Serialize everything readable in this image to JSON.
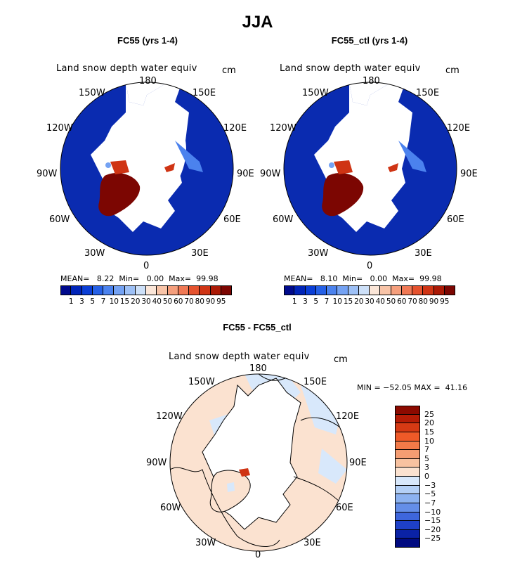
{
  "title": "JJA",
  "panels": [
    {
      "title": "FC55 (yrs 1-4)",
      "variable": "Land snow depth water equiv",
      "units": "cm",
      "stats": {
        "mean_label": "MEAN=",
        "mean": "8.22",
        "min_label": "Min=",
        "min": "0.00",
        "max_label": "Max=",
        "max": "99.98"
      }
    },
    {
      "title": "FC55_ctl (yrs 1-4)",
      "variable": "Land snow depth water equiv",
      "units": "cm",
      "stats": {
        "mean_label": "MEAN=",
        "mean": "8.10",
        "min_label": "Min=",
        "min": "0.00",
        "max_label": "Max=",
        "max": "99.98"
      }
    },
    {
      "title": "FC55 - FC55_ctl",
      "variable": "Land snow depth water equiv",
      "units": "cm",
      "stats_text": "MIN = −52.05 MAX =  41.16"
    }
  ],
  "longitude_labels": [
    "180",
    "150E",
    "120E",
    "90E",
    "60E",
    "30E",
    "0",
    "30W",
    "60W",
    "90W",
    "120W",
    "150W"
  ],
  "colorbar_top": {
    "ticks": [
      "1",
      "3",
      "5",
      "7",
      "10",
      "15",
      "20",
      "30",
      "40",
      "50",
      "60",
      "70",
      "80",
      "90",
      "95"
    ],
    "colors": [
      "#000a8c",
      "#0024b8",
      "#0a3ed6",
      "#2560e6",
      "#4b82ee",
      "#74a2f3",
      "#9dc0f6",
      "#cde0f8",
      "#fbe6d8",
      "#f8c4a8",
      "#f59f7d",
      "#f07955",
      "#e5522e",
      "#cf3414",
      "#ab1a06",
      "#7c0602"
    ]
  },
  "colorbar_diff": {
    "ticks": [
      "25",
      "20",
      "15",
      "10",
      "7",
      "5",
      "3",
      "0",
      "−3",
      "−5",
      "−7",
      "−10",
      "−15",
      "−20",
      "−25"
    ],
    "colors": [
      "#8c0a00",
      "#b51c06",
      "#d63a14",
      "#ef5a28",
      "#f27a48",
      "#f59d72",
      "#f8c2a0",
      "#fbe2d0",
      "#d8e8fb",
      "#b4d0f6",
      "#8cb2f0",
      "#648ee8",
      "#3e66dc",
      "#1e40c8",
      "#0a22a6",
      "#000a80"
    ]
  },
  "chart_data": [
    {
      "type": "heatmap",
      "title": "FC55 (yrs 1-4)",
      "subtitle": "Land snow depth water equiv",
      "units": "cm",
      "projection": "north polar stereographic",
      "mean": 8.22,
      "min": 0.0,
      "max": 99.98,
      "levels": [
        1,
        3,
        5,
        7,
        10,
        15,
        20,
        30,
        40,
        50,
        60,
        70,
        80,
        90,
        95
      ]
    },
    {
      "type": "heatmap",
      "title": "FC55_ctl (yrs 1-4)",
      "subtitle": "Land snow depth water equiv",
      "units": "cm",
      "projection": "north polar stereographic",
      "mean": 8.1,
      "min": 0.0,
      "max": 99.98,
      "levels": [
        1,
        3,
        5,
        7,
        10,
        15,
        20,
        30,
        40,
        50,
        60,
        70,
        80,
        90,
        95
      ]
    },
    {
      "type": "heatmap",
      "title": "FC55 - FC55_ctl",
      "subtitle": "Land snow depth water equiv",
      "units": "cm",
      "projection": "north polar stereographic",
      "min": -52.05,
      "max": 41.16,
      "levels": [
        -25,
        -20,
        -15,
        -10,
        -7,
        -5,
        -3,
        0,
        3,
        5,
        7,
        10,
        15,
        20,
        25
      ]
    }
  ]
}
